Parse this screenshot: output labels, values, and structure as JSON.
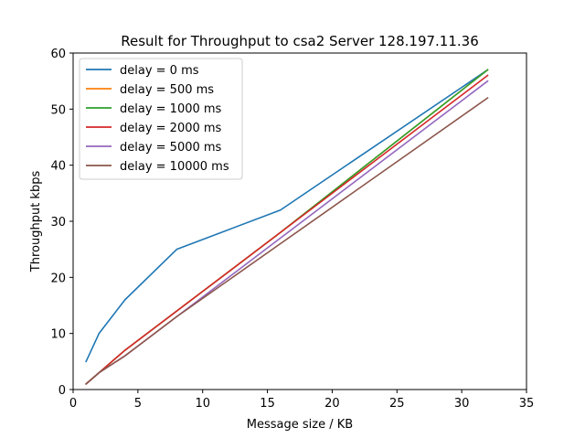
{
  "chart_data": {
    "type": "line",
    "title": "Result for Throughput to csa2 Server 128.197.11.36",
    "xlabel": "Message size / KB",
    "ylabel": "Throughput kbps",
    "xlim": [
      0,
      35
    ],
    "ylim": [
      0,
      60
    ],
    "xticks": [
      0,
      5,
      10,
      15,
      20,
      25,
      30,
      35
    ],
    "yticks": [
      0,
      10,
      20,
      30,
      40,
      50,
      60
    ],
    "grid": false,
    "legend_position": "top-left",
    "x": [
      1,
      2,
      4,
      8,
      16,
      32
    ],
    "series": [
      {
        "name": "delay = 0 ms",
        "color": "#1f77b4",
        "values": [
          5,
          10,
          16,
          25,
          32,
          57
        ]
      },
      {
        "name": "delay = 500 ms",
        "color": "#ff7f0e",
        "values": [
          1,
          3,
          7,
          14,
          28,
          57
        ]
      },
      {
        "name": "delay = 1000 ms",
        "color": "#2ca02c",
        "values": [
          1,
          3,
          7,
          14,
          28,
          57
        ]
      },
      {
        "name": "delay = 2000 ms",
        "color": "#d62728",
        "values": [
          1,
          3,
          7,
          14,
          28,
          56
        ]
      },
      {
        "name": "delay = 5000 ms",
        "color": "#9467bd",
        "values": [
          1,
          3,
          6,
          13,
          27,
          55
        ]
      },
      {
        "name": "delay = 10000 ms",
        "color": "#8c564b",
        "values": [
          1,
          3,
          6,
          13,
          26,
          52
        ]
      }
    ]
  }
}
